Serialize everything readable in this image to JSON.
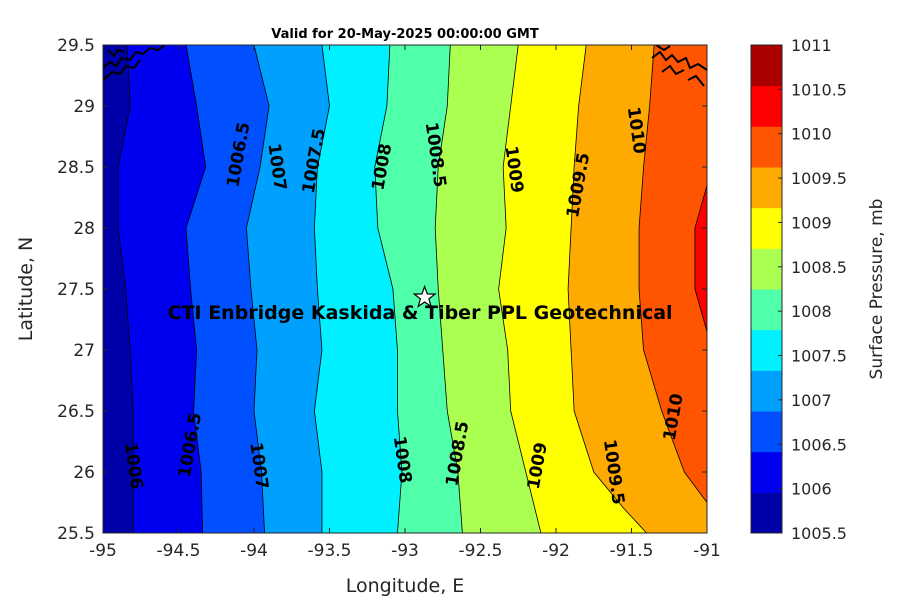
{
  "chart_data": {
    "type": "contour",
    "title": "Valid for 20-May-2025 00:00:00 GMT",
    "xlabel": "Longitude, E",
    "ylabel": "Latitude, N",
    "colorbar_label": "Surface Pressure, mb",
    "xlim": [
      -95,
      -91
    ],
    "ylim": [
      25.5,
      29.5
    ],
    "x_ticks": [
      "-95",
      "-94.5",
      "-94",
      "-93.5",
      "-93",
      "-92.5",
      "-92",
      "-91.5",
      "-91"
    ],
    "y_ticks": [
      "25.5",
      "26",
      "26.5",
      "27",
      "27.5",
      "28",
      "28.5",
      "29",
      "29.5"
    ],
    "colorbar": {
      "levels": [
        "1005.5",
        "1006",
        "1006.5",
        "1007",
        "1007.5",
        "1008",
        "1008.5",
        "1009",
        "1009.5",
        "1010",
        "1010.5",
        "1011"
      ],
      "colors": [
        "#0000A8",
        "#0000F0",
        "#0050FF",
        "#00A0FF",
        "#00F0FF",
        "#50FFAA",
        "#AAFF50",
        "#FFFF00",
        "#FFAA00",
        "#FF5500",
        "#FF0000",
        "#AA0000"
      ]
    },
    "contours": [
      {
        "level": 1006,
        "label": "1006",
        "points": [
          [
            -94.84,
            29.5
          ],
          [
            -94.82,
            29
          ],
          [
            -94.9,
            28.5
          ],
          [
            -94.9,
            28.0
          ],
          [
            -94.85,
            27.5
          ],
          [
            -94.82,
            27.0
          ],
          [
            -94.8,
            26.5
          ],
          [
            -94.8,
            26.0
          ],
          [
            -94.8,
            25.5
          ]
        ],
        "label_pos": [
          -94.8,
          26.05
        ]
      },
      {
        "level": 1006.5,
        "label": "1006.5",
        "points": [
          [
            -94.45,
            29.5
          ],
          [
            -94.38,
            29
          ],
          [
            -94.32,
            28.5
          ],
          [
            -94.45,
            28.0
          ],
          [
            -94.42,
            27.5
          ],
          [
            -94.38,
            27.0
          ],
          [
            -94.4,
            26.5
          ],
          [
            -94.35,
            26.0
          ],
          [
            -94.34,
            25.5
          ]
        ],
        "label_pos": [
          -94.42,
          26.22
        ]
      },
      {
        "level": 1007,
        "label": "1007",
        "points": [
          [
            -94.0,
            29.5
          ],
          [
            -93.9,
            29
          ],
          [
            -93.96,
            28.5
          ],
          [
            -94.05,
            28.0
          ],
          [
            -94.02,
            27.5
          ],
          [
            -93.98,
            27.0
          ],
          [
            -94.0,
            26.5
          ],
          [
            -93.95,
            26.0
          ],
          [
            -93.93,
            25.5
          ]
        ],
        "label_pos": [
          -93.97,
          26.05
        ]
      },
      {
        "level": 1007.5,
        "label": "1007.5",
        "points": [
          [
            -93.55,
            29.5
          ],
          [
            -93.5,
            29
          ],
          [
            -93.58,
            28.5
          ],
          [
            -93.6,
            28.0
          ],
          [
            -93.58,
            27.5
          ],
          [
            -93.55,
            27.0
          ],
          [
            -93.6,
            26.5
          ],
          [
            -93.55,
            26.0
          ],
          [
            -93.55,
            25.5
          ]
        ],
        "label_pos": [
          -93.6,
          28.55
        ]
      },
      {
        "level": 1008,
        "label": "1008",
        "points": [
          [
            -93.1,
            29.5
          ],
          [
            -93.12,
            29
          ],
          [
            -93.2,
            28.5
          ],
          [
            -93.18,
            28.0
          ],
          [
            -93.08,
            27.5
          ],
          [
            -93.05,
            27.0
          ],
          [
            -93.05,
            26.5
          ],
          [
            -93.02,
            26.0
          ],
          [
            -93.05,
            25.5
          ]
        ],
        "label_pos": [
          -93.02,
          26.1
        ]
      },
      {
        "level": 1008.5,
        "label": "1008.5",
        "points": [
          [
            -92.7,
            29.5
          ],
          [
            -92.72,
            29
          ],
          [
            -92.78,
            28.5
          ],
          [
            -92.8,
            28.0
          ],
          [
            -92.78,
            27.5
          ],
          [
            -92.75,
            27.0
          ],
          [
            -92.72,
            26.5
          ],
          [
            -92.65,
            26.0
          ],
          [
            -92.62,
            25.5
          ]
        ],
        "label_pos": [
          -92.65,
          26.15
        ]
      },
      {
        "level": 1009,
        "label": "1009",
        "points": [
          [
            -92.25,
            29.5
          ],
          [
            -92.3,
            29
          ],
          [
            -92.35,
            28.5
          ],
          [
            -92.33,
            28.0
          ],
          [
            -92.38,
            27.5
          ],
          [
            -92.32,
            27.0
          ],
          [
            -92.3,
            26.5
          ],
          [
            -92.2,
            26.0
          ],
          [
            -92.1,
            25.5
          ]
        ],
        "label_pos": [
          -92.28,
          28.48
        ]
      },
      {
        "level": 1009.5,
        "label": "1009.5",
        "points": [
          [
            -91.8,
            29.5
          ],
          [
            -91.85,
            29
          ],
          [
            -91.88,
            28.5
          ],
          [
            -91.9,
            28.0
          ],
          [
            -91.92,
            27.5
          ],
          [
            -91.9,
            27.0
          ],
          [
            -91.88,
            26.5
          ],
          [
            -91.75,
            26.0
          ],
          [
            -91.55,
            25.7
          ],
          [
            -91.4,
            25.5
          ]
        ],
        "label_pos": [
          -91.85,
          28.35
        ]
      },
      {
        "level": 1010,
        "label": "1010",
        "points": [
          [
            -91.35,
            29.5
          ],
          [
            -91.38,
            29
          ],
          [
            -91.42,
            28.5
          ],
          [
            -91.45,
            28.0
          ],
          [
            -91.45,
            27.5
          ],
          [
            -91.42,
            27.0
          ],
          [
            -91.3,
            26.5
          ],
          [
            -91.15,
            26.0
          ],
          [
            -91.0,
            25.75
          ]
        ],
        "label_pos": [
          -91.47,
          28.8
        ]
      },
      {
        "level": 1010.5,
        "label": "",
        "points": [
          [
            -91.0,
            28.35
          ],
          [
            -91.08,
            28.0
          ],
          [
            -91.08,
            27.5
          ],
          [
            -91.0,
            27.15
          ]
        ],
        "label_pos": null
      }
    ],
    "extra_labels": [
      {
        "label": "1010",
        "pos": [
          -91.22,
          26.45
        ]
      },
      {
        "label": "1009.5",
        "pos": [
          -91.62,
          26.0
        ]
      },
      {
        "label": "1009",
        "pos": [
          -92.12,
          26.05
        ]
      },
      {
        "label": "1008.5",
        "pos": [
          -92.8,
          28.6
        ]
      },
      {
        "label": "1008",
        "pos": [
          -93.15,
          28.5
        ]
      },
      {
        "label": "1007",
        "pos": [
          -93.85,
          28.5
        ]
      },
      {
        "label": "1006.5",
        "pos": [
          -94.1,
          28.6
        ]
      }
    ],
    "marker": {
      "symbol": "star",
      "lon": -92.87,
      "lat": 27.43
    },
    "annotation": {
      "text": "CTI Enbridge  Kaskida & Tiber PPL Geotechnical",
      "lon": -92.9,
      "lat": 27.3
    }
  }
}
